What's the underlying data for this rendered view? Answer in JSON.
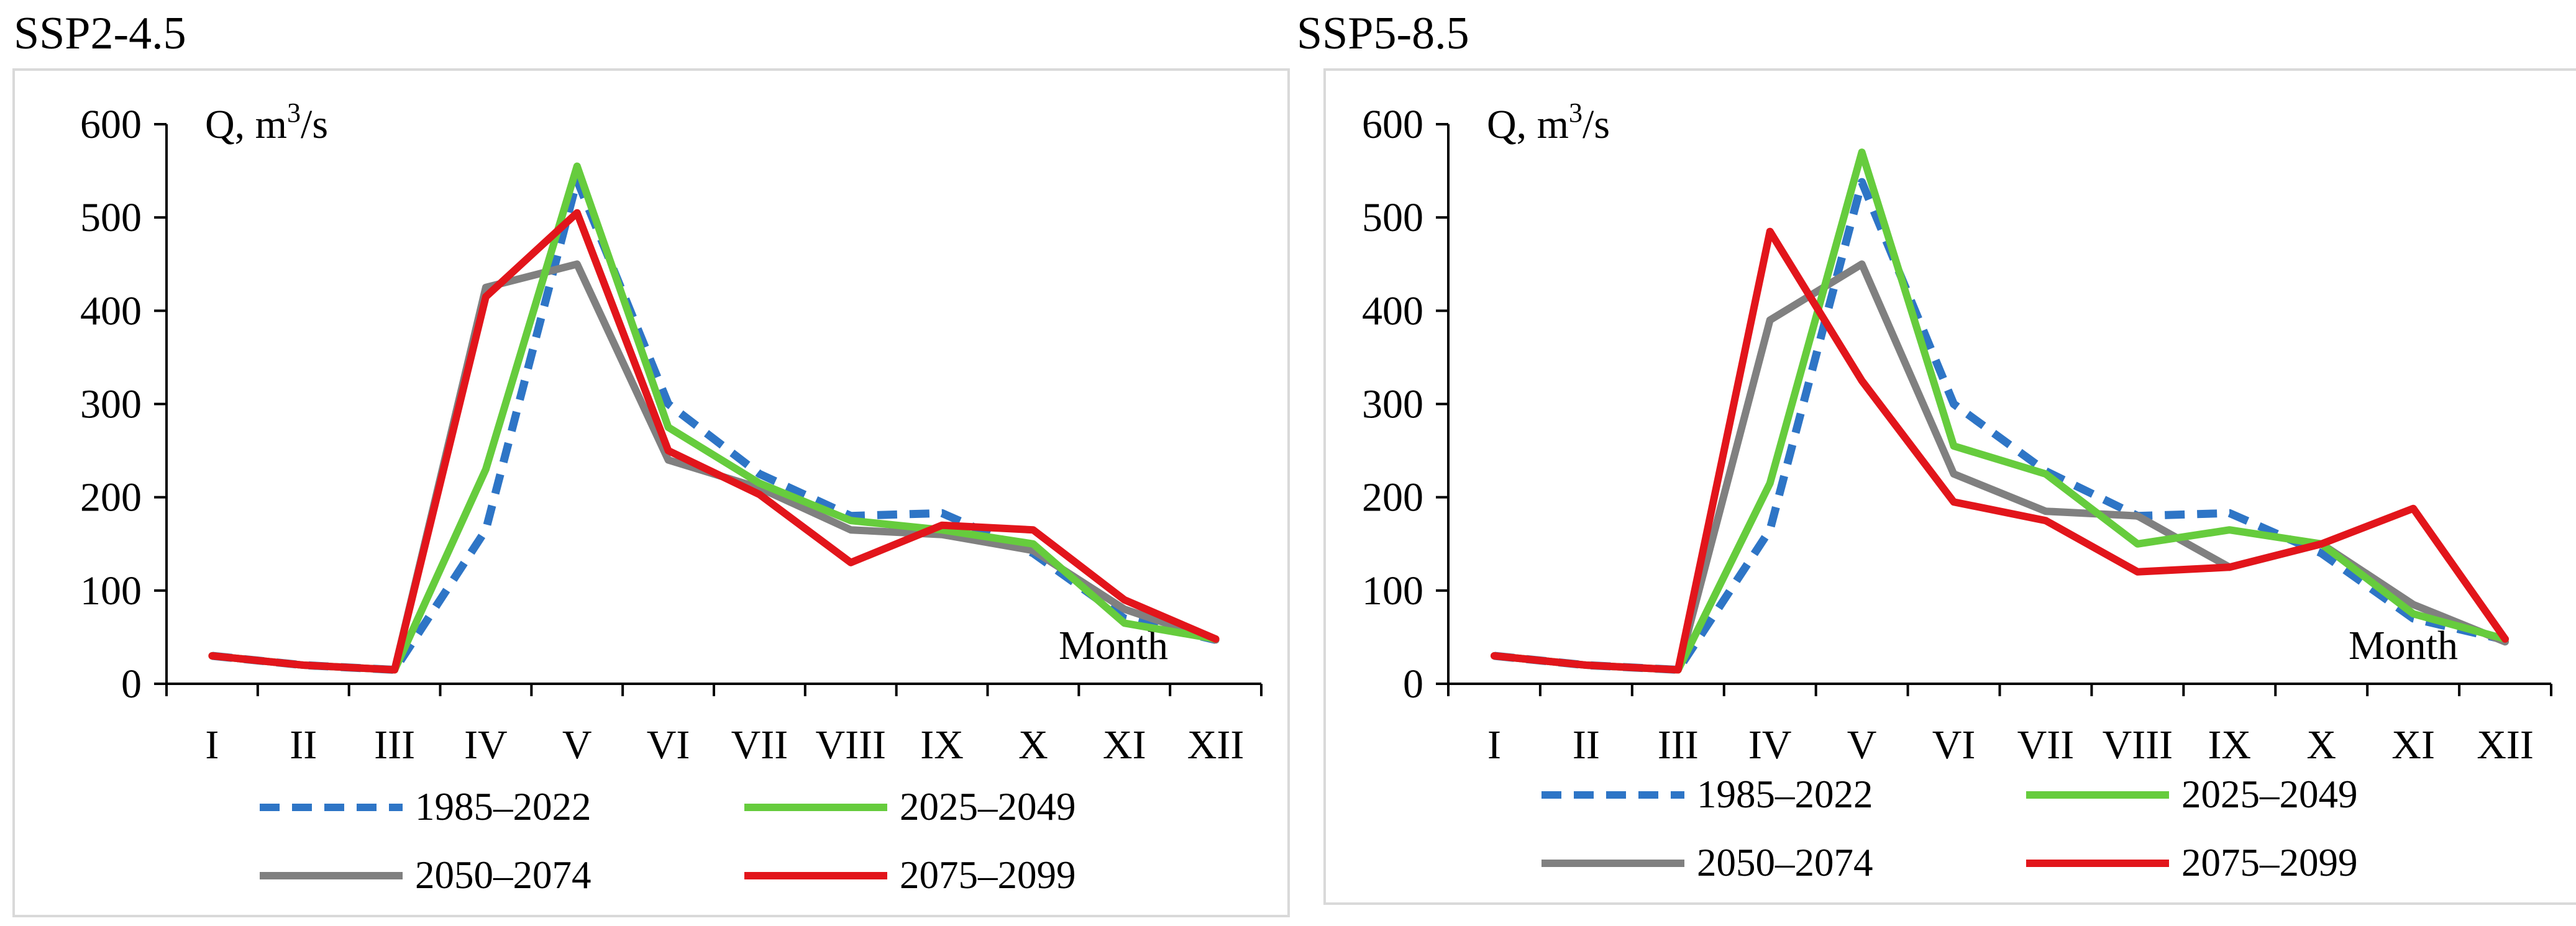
{
  "chart_data": [
    {
      "type": "line",
      "title": "SSP2-4.5",
      "xlabel": "Month",
      "ylabel": "Q, m",
      "ylabel_sup": "3",
      "ylabel_tail": "/s",
      "categories": [
        "I",
        "II",
        "III",
        "IV",
        "V",
        "VI",
        "VII",
        "VIII",
        "IX",
        "X",
        "XI",
        "XII"
      ],
      "ylim": [
        0,
        600
      ],
      "yticks": [
        0,
        100,
        200,
        300,
        400,
        500,
        600
      ],
      "grid": false,
      "legend": "bottom",
      "series": [
        {
          "name": "1985–2022",
          "color": "#2E75C6",
          "dash": true,
          "values": [
            30,
            20,
            15,
            165,
            540,
            300,
            225,
            180,
            183,
            140,
            70,
            47
          ]
        },
        {
          "name": "2025–2049",
          "color": "#66CC3D",
          "dash": false,
          "values": [
            30,
            20,
            15,
            230,
            555,
            275,
            215,
            175,
            165,
            150,
            65,
            48
          ]
        },
        {
          "name": "2050–2074",
          "color": "#808080",
          "dash": false,
          "values": [
            30,
            20,
            15,
            425,
            450,
            240,
            210,
            165,
            160,
            143,
            80,
            47
          ]
        },
        {
          "name": "2075–2099",
          "color": "#E2151B",
          "dash": false,
          "values": [
            30,
            20,
            15,
            415,
            505,
            250,
            203,
            130,
            170,
            165,
            90,
            48
          ]
        }
      ]
    },
    {
      "type": "line",
      "title": "SSP5-8.5",
      "xlabel": "Month",
      "ylabel": "Q, m",
      "ylabel_sup": "3",
      "ylabel_tail": "/s",
      "categories": [
        "I",
        "II",
        "III",
        "IV",
        "V",
        "VI",
        "VII",
        "VIII",
        "IX",
        "X",
        "XI",
        "XII"
      ],
      "ylim": [
        0,
        600
      ],
      "yticks": [
        0,
        100,
        200,
        300,
        400,
        500,
        600
      ],
      "grid": false,
      "legend": "bottom",
      "series": [
        {
          "name": "1985–2022",
          "color": "#2E75C6",
          "dash": true,
          "values": [
            30,
            20,
            15,
            165,
            538,
            300,
            228,
            180,
            183,
            140,
            70,
            47
          ]
        },
        {
          "name": "2025–2049",
          "color": "#66CC3D",
          "dash": false,
          "values": [
            30,
            20,
            15,
            215,
            570,
            255,
            225,
            150,
            165,
            150,
            75,
            48
          ]
        },
        {
          "name": "2050–2074",
          "color": "#808080",
          "dash": false,
          "values": [
            30,
            20,
            15,
            390,
            450,
            225,
            185,
            180,
            125,
            150,
            85,
            45
          ]
        },
        {
          "name": "2075–2099",
          "color": "#E2151B",
          "dash": false,
          "values": [
            30,
            20,
            15,
            485,
            325,
            195,
            175,
            120,
            125,
            150,
            188,
            48
          ]
        }
      ]
    }
  ]
}
